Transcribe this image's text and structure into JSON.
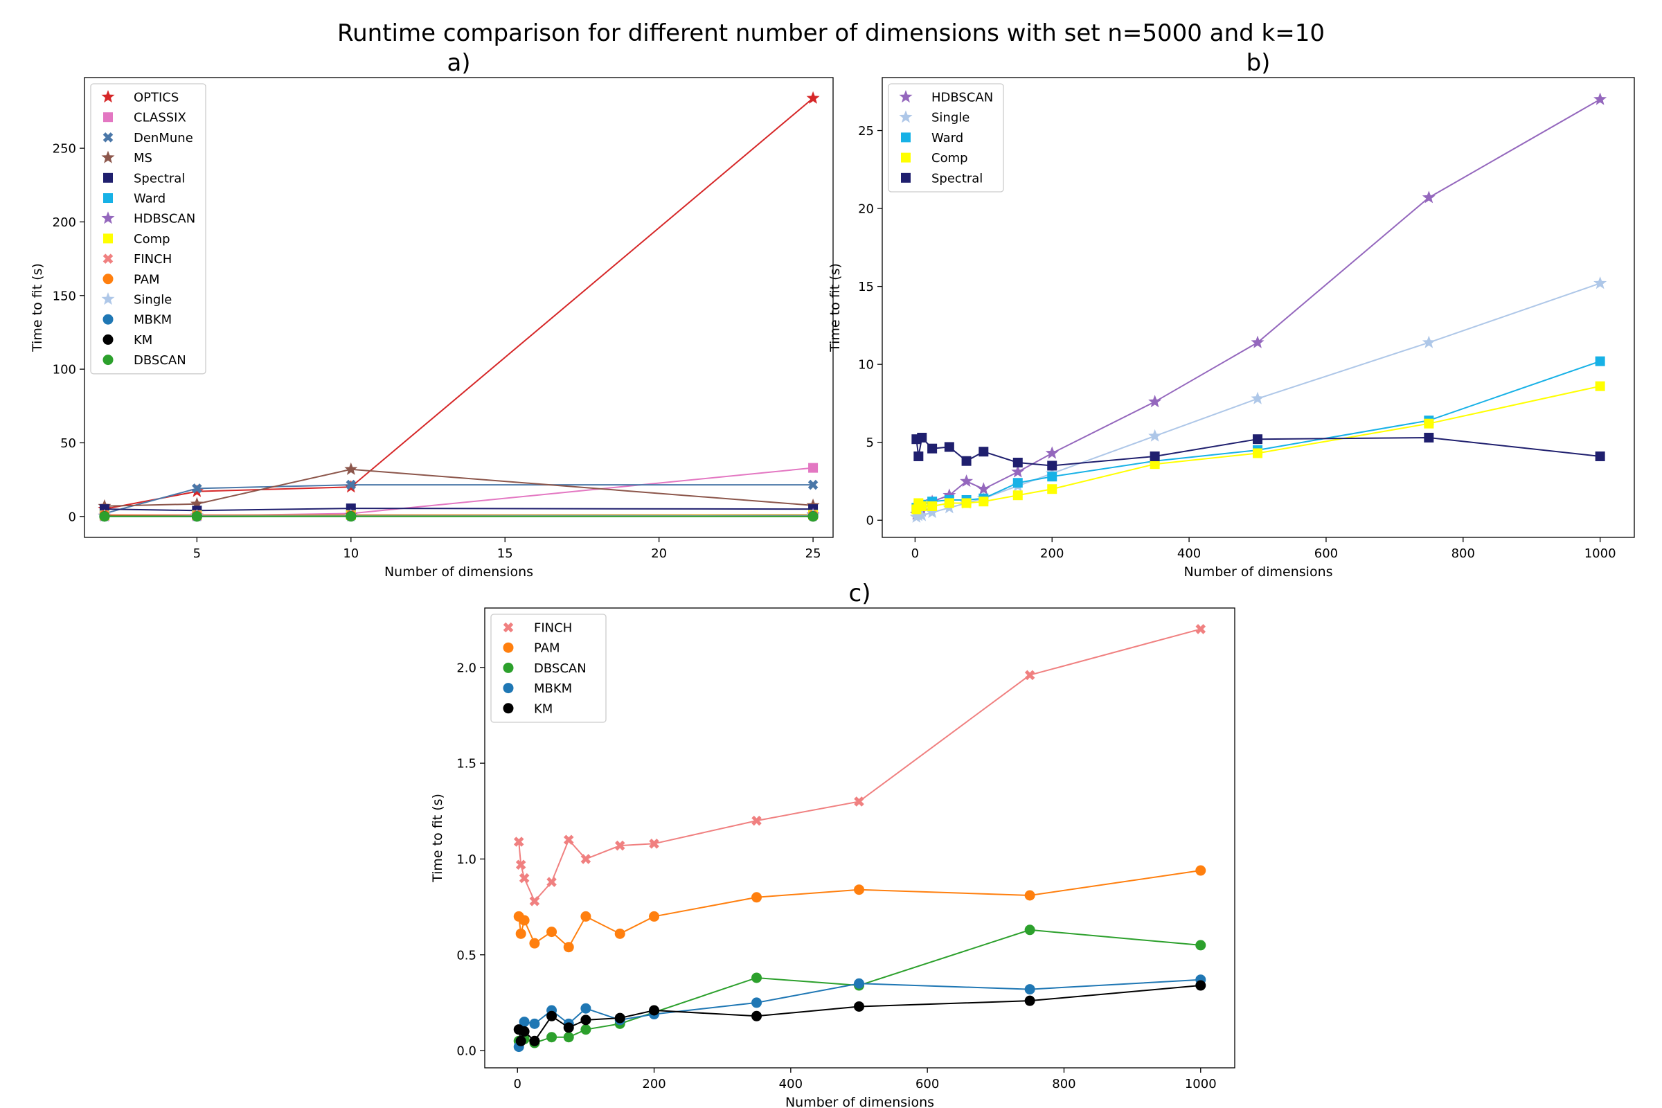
{
  "figure": {
    "title": "Runtime comparison for different number of dimensions with set n=5000 and k=10"
  },
  "chart_data": [
    {
      "type": "line",
      "title": "a)",
      "xlabel": "Number of dimensions",
      "ylabel": "Time to fit (s)",
      "xlim": [
        1.35,
        25.65
      ],
      "ylim": [
        -14.2,
        298
      ],
      "xticks": [
        5,
        10,
        15,
        20,
        25
      ],
      "yticks": [
        0,
        50,
        100,
        150,
        200,
        250
      ],
      "legend_position": "upper-left",
      "series": [
        {
          "name": "OPTICS",
          "color": "#d62728",
          "marker": "star",
          "x": [
            2,
            5,
            10,
            25
          ],
          "y": [
            5,
            17,
            20,
            284
          ]
        },
        {
          "name": "CLASSIX",
          "color": "#e377c2",
          "marker": "square",
          "x": [
            2,
            5,
            10,
            25
          ],
          "y": [
            0.3,
            0.5,
            2,
            33
          ]
        },
        {
          "name": "DenMune",
          "color": "#4a77a8",
          "marker": "x",
          "x": [
            2,
            5,
            10,
            25
          ],
          "y": [
            2,
            19,
            21.5,
            21.5
          ]
        },
        {
          "name": "MS",
          "color": "#8c564b",
          "marker": "star",
          "x": [
            2,
            5,
            10,
            25
          ],
          "y": [
            7,
            8.5,
            32,
            7.5
          ]
        },
        {
          "name": "Spectral",
          "color": "#1f1f6e",
          "marker": "square",
          "x": [
            2,
            5,
            10,
            25
          ],
          "y": [
            5,
            4,
            5.5,
            5
          ]
        },
        {
          "name": "Ward",
          "color": "#17b1e6",
          "marker": "square",
          "x": [
            2,
            5,
            10,
            25
          ],
          "y": [
            0.8,
            0.9,
            1,
            1.2
          ]
        },
        {
          "name": "HDBSCAN",
          "color": "#9467bd",
          "marker": "star",
          "x": [
            2,
            5,
            10,
            25
          ],
          "y": [
            0.4,
            0.5,
            0.6,
            1.2
          ]
        },
        {
          "name": "Comp",
          "color": "#ffff00",
          "marker": "square",
          "x": [
            2,
            5,
            10,
            25
          ],
          "y": [
            0.7,
            0.8,
            0.9,
            1.1
          ]
        },
        {
          "name": "FINCH",
          "color": "#f08080",
          "marker": "x",
          "x": [
            2,
            5,
            10,
            25
          ],
          "y": [
            1.1,
            1,
            0.9,
            0.8
          ]
        },
        {
          "name": "PAM",
          "color": "#ff7f0e",
          "marker": "circle",
          "x": [
            2,
            5,
            10,
            25
          ],
          "y": [
            0.7,
            0.6,
            0.7,
            0.6
          ]
        },
        {
          "name": "Single",
          "color": "#aec7e8",
          "marker": "star",
          "x": [
            2,
            5,
            10,
            25
          ],
          "y": [
            0.2,
            0.3,
            0.3,
            0.5
          ]
        },
        {
          "name": "MBKM",
          "color": "#1f77b4",
          "marker": "circle",
          "x": [
            2,
            5,
            10,
            25
          ],
          "y": [
            0.02,
            0.05,
            0.15,
            0.14
          ]
        },
        {
          "name": "KM",
          "color": "#000000",
          "marker": "circle",
          "x": [
            2,
            5,
            10,
            25
          ],
          "y": [
            0.11,
            0.05,
            0.1,
            0.05
          ]
        },
        {
          "name": "DBSCAN",
          "color": "#2ca02c",
          "marker": "circle",
          "x": [
            2,
            5,
            10,
            25
          ],
          "y": [
            0.05,
            0.05,
            0.06,
            0.05
          ]
        }
      ]
    },
    {
      "type": "line",
      "title": "b)",
      "xlabel": "Number of dimensions",
      "ylabel": "Time to fit (s)",
      "xlim": [
        -47.9,
        1049.9
      ],
      "ylim": [
        -1.1,
        28.4
      ],
      "xticks": [
        0,
        200,
        400,
        600,
        800,
        1000
      ],
      "yticks": [
        0,
        5,
        10,
        15,
        20,
        25
      ],
      "legend_position": "upper-left",
      "series": [
        {
          "name": "HDBSCAN",
          "color": "#9467bd",
          "marker": "star",
          "x": [
            2,
            5,
            10,
            25,
            50,
            75,
            100,
            150,
            200,
            350,
            500,
            750,
            1000
          ],
          "y": [
            0.4,
            0.5,
            0.6,
            1.2,
            1.6,
            2.5,
            2,
            3.1,
            4.3,
            7.6,
            11.4,
            20.7,
            27
          ]
        },
        {
          "name": "Single",
          "color": "#aec7e8",
          "marker": "star",
          "x": [
            2,
            5,
            10,
            25,
            50,
            75,
            100,
            150,
            200,
            350,
            500,
            750,
            1000
          ],
          "y": [
            0.2,
            0.3,
            0.3,
            0.5,
            0.8,
            1.1,
            1.4,
            2.2,
            3,
            5.4,
            7.8,
            11.4,
            15.2
          ]
        },
        {
          "name": "Ward",
          "color": "#17b1e6",
          "marker": "square",
          "x": [
            2,
            5,
            10,
            25,
            50,
            75,
            100,
            150,
            200,
            350,
            500,
            750,
            1000
          ],
          "y": [
            0.8,
            0.9,
            1,
            1.2,
            1.3,
            1.3,
            1.4,
            2.4,
            2.8,
            3.8,
            4.5,
            6.4,
            10.2
          ]
        },
        {
          "name": "Comp",
          "color": "#ffff00",
          "marker": "square",
          "x": [
            2,
            5,
            10,
            25,
            50,
            75,
            100,
            150,
            200,
            350,
            500,
            750,
            1000
          ],
          "y": [
            0.7,
            1.1,
            0.9,
            0.9,
            1.1,
            1.1,
            1.2,
            1.6,
            2,
            3.6,
            4.3,
            6.2,
            8.6
          ]
        },
        {
          "name": "Spectral",
          "color": "#1f1f6e",
          "marker": "square",
          "x": [
            2,
            5,
            10,
            25,
            50,
            75,
            100,
            150,
            200,
            350,
            500,
            750,
            1000
          ],
          "y": [
            5.2,
            4.1,
            5.3,
            4.6,
            4.7,
            3.8,
            4.4,
            3.7,
            3.5,
            4.1,
            5.2,
            5.3,
            4.1
          ]
        }
      ]
    },
    {
      "type": "line",
      "title": "c)",
      "xlabel": "Number of dimensions",
      "ylabel": "Time to fit (s)",
      "xlim": [
        -47.9,
        1049.9
      ],
      "ylim": [
        -0.09,
        2.31
      ],
      "xticks": [
        0,
        200,
        400,
        600,
        800,
        1000
      ],
      "yticks": [
        0.0,
        0.5,
        1.0,
        1.5,
        2.0
      ],
      "legend_position": "upper-left",
      "series": [
        {
          "name": "FINCH",
          "color": "#f08080",
          "marker": "x",
          "x": [
            2,
            5,
            10,
            25,
            50,
            75,
            100,
            150,
            200,
            350,
            500,
            750,
            1000
          ],
          "y": [
            1.09,
            0.97,
            0.9,
            0.78,
            0.88,
            1.1,
            1,
            1.07,
            1.08,
            1.2,
            1.3,
            1.96,
            2.2
          ]
        },
        {
          "name": "PAM",
          "color": "#ff7f0e",
          "marker": "circle",
          "x": [
            2,
            5,
            10,
            25,
            50,
            75,
            100,
            150,
            200,
            350,
            500,
            750,
            1000
          ],
          "y": [
            0.7,
            0.61,
            0.68,
            0.56,
            0.62,
            0.54,
            0.7,
            0.61,
            0.7,
            0.8,
            0.84,
            0.81,
            0.94
          ]
        },
        {
          "name": "DBSCAN",
          "color": "#2ca02c",
          "marker": "circle",
          "x": [
            2,
            5,
            10,
            25,
            50,
            75,
            100,
            150,
            200,
            350,
            500,
            750,
            1000
          ],
          "y": [
            0.05,
            0.05,
            0.06,
            0.04,
            0.07,
            0.07,
            0.11,
            0.14,
            0.2,
            0.38,
            0.34,
            0.63,
            0.55
          ]
        },
        {
          "name": "MBKM",
          "color": "#1f77b4",
          "marker": "circle",
          "x": [
            2,
            5,
            10,
            25,
            50,
            75,
            100,
            150,
            200,
            350,
            500,
            750,
            1000
          ],
          "y": [
            0.02,
            0.05,
            0.15,
            0.14,
            0.21,
            0.14,
            0.22,
            0.16,
            0.19,
            0.25,
            0.35,
            0.32,
            0.37
          ]
        },
        {
          "name": "KM",
          "color": "#000000",
          "marker": "circle",
          "x": [
            2,
            5,
            10,
            25,
            50,
            75,
            100,
            150,
            200,
            350,
            500,
            750,
            1000
          ],
          "y": [
            0.11,
            0.05,
            0.1,
            0.05,
            0.18,
            0.12,
            0.16,
            0.17,
            0.21,
            0.18,
            0.23,
            0.26,
            0.34
          ]
        }
      ]
    }
  ]
}
